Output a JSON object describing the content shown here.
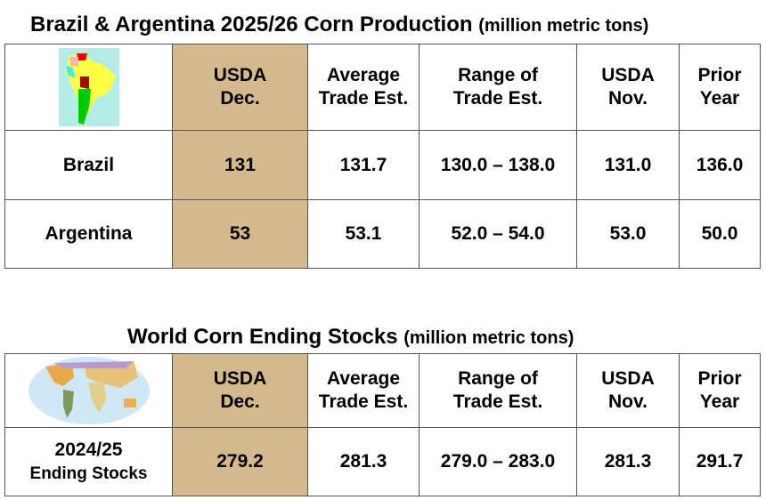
{
  "colors": {
    "highlight": "#D4B98C"
  },
  "table1": {
    "title": "Brazil & Argentina 2025/26 Corn Production",
    "unit": "(million metric tons)",
    "image": "south-america-map",
    "headers": [
      [
        "USDA",
        "Dec."
      ],
      [
        "Average",
        "Trade Est."
      ],
      [
        "Range of",
        "Trade Est."
      ],
      [
        "USDA",
        "Nov."
      ],
      [
        "Prior",
        "Year"
      ]
    ],
    "rows": [
      {
        "label": "Brazil",
        "values": [
          "131",
          "131.7",
          "130.0 – 138.0",
          "131.0",
          "136.0"
        ]
      },
      {
        "label": "Argentina",
        "values": [
          "53",
          "53.1",
          "52.0 – 54.0",
          "53.0",
          "50.0"
        ]
      }
    ]
  },
  "table2": {
    "title": "World Corn Ending Stocks",
    "unit": "(million metric tons)",
    "image": "world-map",
    "headers": [
      [
        "USDA",
        "Dec."
      ],
      [
        "Average",
        "Trade Est."
      ],
      [
        "Range of",
        "Trade Est."
      ],
      [
        "USDA",
        "Nov."
      ],
      [
        "Prior",
        "Year"
      ]
    ],
    "rows": [
      {
        "label": "2024/25",
        "sublabel": "Ending Stocks",
        "values": [
          "279.2",
          "281.3",
          "279.0 – 283.0",
          "281.3",
          "291.7"
        ]
      }
    ]
  }
}
